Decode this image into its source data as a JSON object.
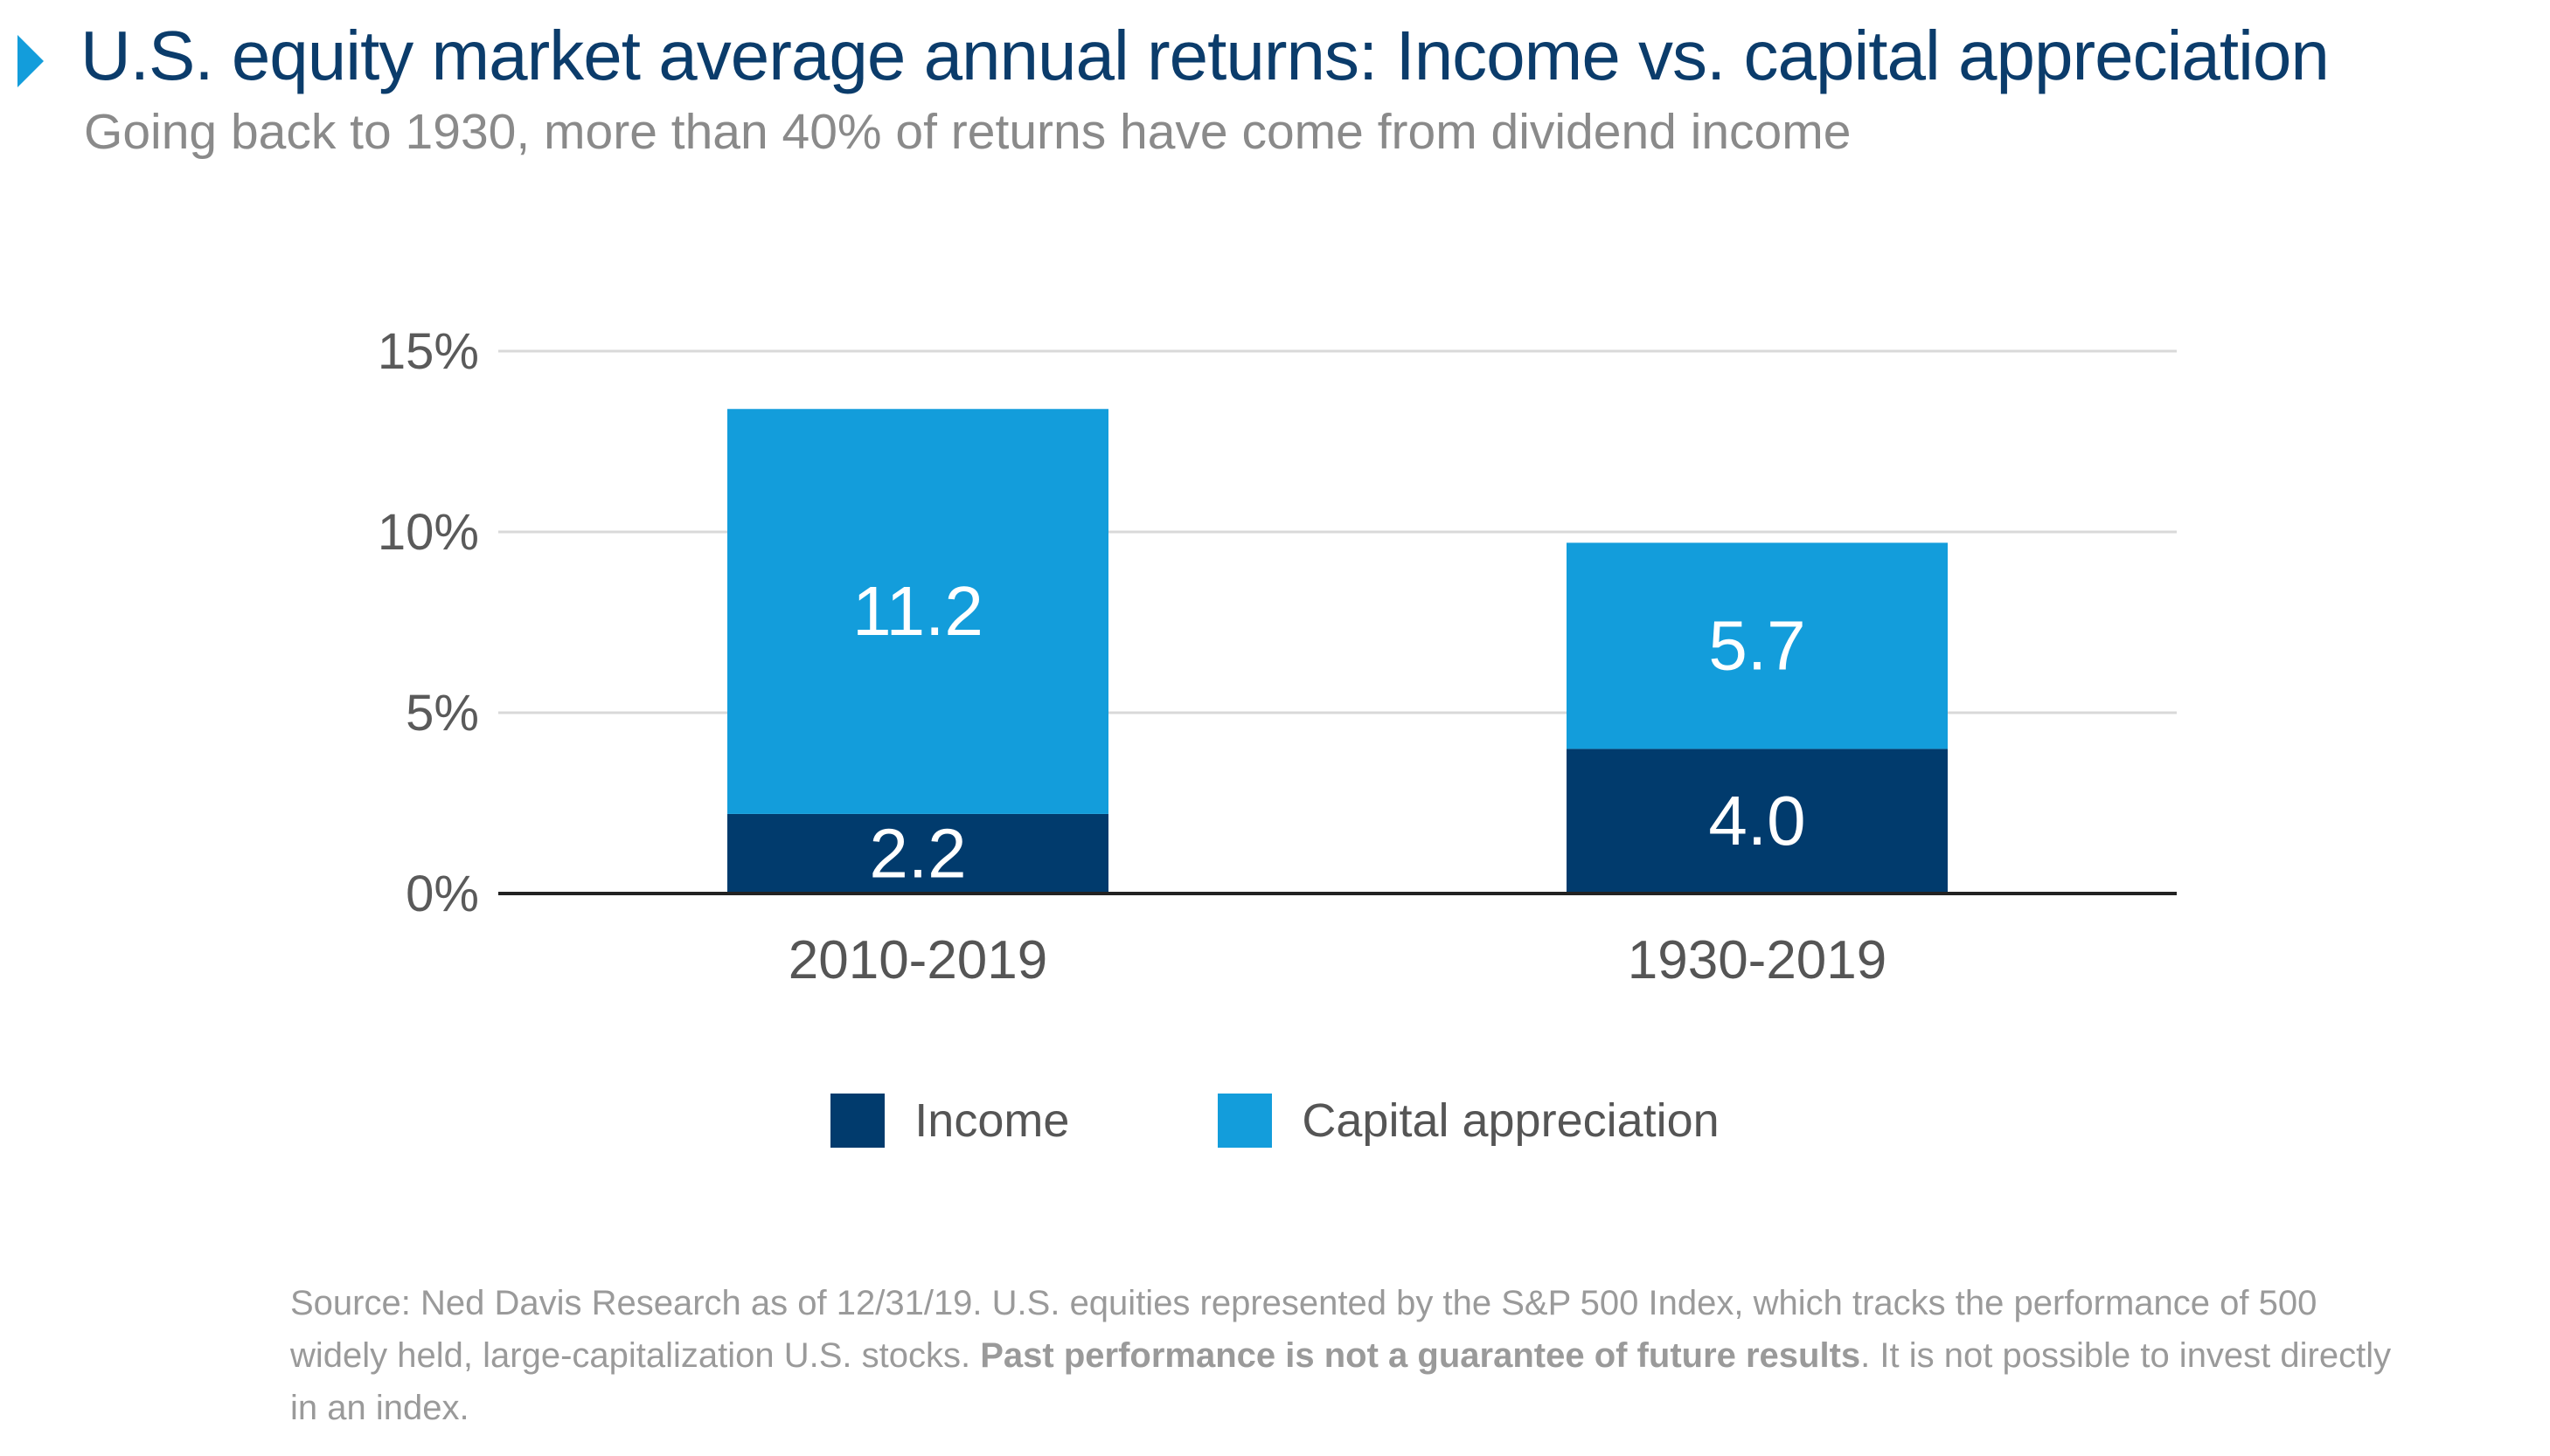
{
  "title": "U.S. equity market average annual returns: Income vs. capital appreciation",
  "subtitle": "Going back to 1930, more than 40% of returns have come from dividend income",
  "colors": {
    "income": "#013b6d",
    "capital_appreciation": "#139ddb",
    "title": "#0b3c6b",
    "grid": "#d9d9d9"
  },
  "chart_data": {
    "type": "bar",
    "stacked": true,
    "categories": [
      "2010-2019",
      "1930-2019"
    ],
    "series": [
      {
        "name": "Income",
        "values": [
          2.2,
          4.0
        ]
      },
      {
        "name": "Capital appreciation",
        "values": [
          11.2,
          5.7
        ]
      }
    ],
    "data_labels": [
      [
        "2.2",
        "4.0"
      ],
      [
        "11.2",
        "5.7"
      ]
    ],
    "y_ticks": [
      "15%",
      "10%",
      "5%",
      "0%"
    ],
    "y_tick_values": [
      15,
      10,
      5,
      0
    ],
    "ylim": [
      0,
      15
    ],
    "xlabel": "",
    "ylabel": "",
    "grid": true,
    "legend_position": "bottom"
  },
  "legend": {
    "income": "Income",
    "capital_appreciation": "Capital appreciation"
  },
  "footnote": {
    "text_1": "Source: Ned Davis Research as of 12/31/19. U.S. equities represented by the S&P 500 Index, which tracks the performance of 500 widely held, large-capitalization U.S. stocks. ",
    "bold": "Past performance is not a guarantee of future results",
    "text_2": ". It is not possible to invest directly in an index."
  }
}
